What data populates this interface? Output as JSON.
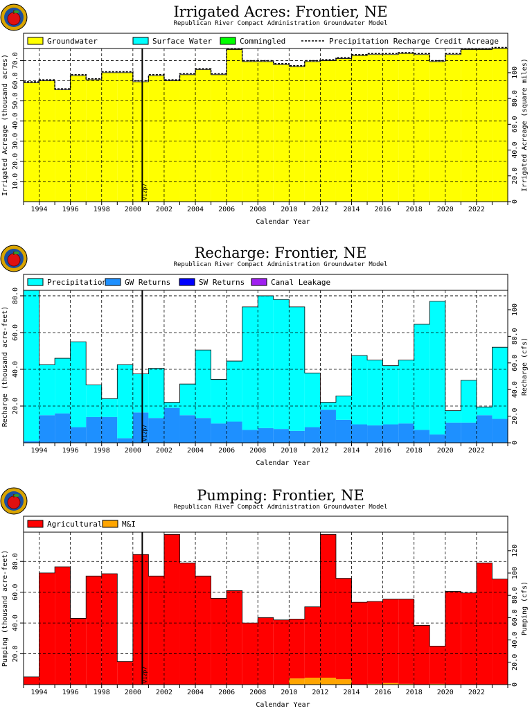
{
  "chart_data": [
    {
      "type": "area",
      "title": "Irrigated Acres: Frontier, NE",
      "subtitle": "Republican River Compact Administration Groundwater Model",
      "xlabel": "Calendar Year",
      "ylabel": "Irrigated Acreage (thousand acres)",
      "ylabel_right": "Irrigated Acreage (square miles)",
      "xlim": [
        1993,
        2024
      ],
      "ylim": [
        0,
        76
      ],
      "y_ticks": [
        {
          "v": 10,
          "label": "10.0"
        },
        {
          "v": 20,
          "label": "20.0"
        },
        {
          "v": 30,
          "label": "30.0"
        },
        {
          "v": 40,
          "label": "40.0"
        },
        {
          "v": 50,
          "label": "50.0"
        },
        {
          "v": 60,
          "label": "60.0"
        },
        {
          "v": 70,
          "label": "70.0"
        }
      ],
      "y2_ticks": [
        {
          "v": 0,
          "label": "0"
        },
        {
          "v": 20,
          "label": "20.0"
        },
        {
          "v": 40,
          "label": "40.0"
        },
        {
          "v": 60,
          "label": "60.0"
        },
        {
          "v": 80,
          "label": "80.0"
        },
        {
          "v": 100,
          "label": "100"
        }
      ],
      "y2_scale": 0.64,
      "x_ticks": [
        {
          "v": 1994,
          "label": "1994"
        },
        {
          "v": 1996,
          "label": "1996"
        },
        {
          "v": 1998,
          "label": "1998"
        },
        {
          "v": 2000,
          "label": "2000"
        },
        {
          "v": 2002,
          "label": "2002"
        },
        {
          "v": 2004,
          "label": "2004"
        },
        {
          "v": 2006,
          "label": "2006"
        },
        {
          "v": 2008,
          "label": "2008"
        },
        {
          "v": 2010,
          "label": "2010"
        },
        {
          "v": 2012,
          "label": "2012"
        },
        {
          "v": 2014,
          "label": "2014"
        },
        {
          "v": 2016,
          "label": "2016"
        },
        {
          "v": 2018,
          "label": "2018"
        },
        {
          "v": 2020,
          "label": "2020"
        },
        {
          "v": 2022,
          "label": "2022"
        }
      ],
      "marker": {
        "x": 2000.6,
        "label": "V12p7"
      },
      "grid": true,
      "legend": [
        {
          "name": "Groundwater",
          "color": "#ffff00",
          "kind": "box"
        },
        {
          "name": "Surface Water",
          "color": "#00ffff",
          "kind": "box"
        },
        {
          "name": "Commingled",
          "color": "#00ff00",
          "kind": "box"
        },
        {
          "name": "Precipitation Recharge Credit Acreage",
          "color": "#000000",
          "kind": "dash"
        }
      ],
      "x": [
        1993,
        1994,
        1995,
        1996,
        1997,
        1998,
        1999,
        2000,
        2001,
        2002,
        2003,
        2004,
        2005,
        2006,
        2007,
        2008,
        2009,
        2010,
        2011,
        2012,
        2013,
        2014,
        2015,
        2016,
        2017,
        2018,
        2019,
        2020,
        2021,
        2022,
        2023
      ],
      "series": [
        {
          "name": "Groundwater",
          "color": "#ffff00",
          "values": [
            59.0,
            60.0,
            55.5,
            62.5,
            60.5,
            64.0,
            64.0,
            59.5,
            62.5,
            60.0,
            63.0,
            65.5,
            63.0,
            75.5,
            69.5,
            69.5,
            68.0,
            67.0,
            69.5,
            70.0,
            71.0,
            72.5,
            73.0,
            73.0,
            73.5,
            73.0,
            69.5,
            73.0,
            75.5,
            75.5,
            76.0
          ]
        }
      ],
      "line": {
        "name": "Precipitation Recharge Credit Acreage",
        "values": [
          59.5,
          60.5,
          56.0,
          63.0,
          61.0,
          64.5,
          64.5,
          60.0,
          63.0,
          60.5,
          63.5,
          66.0,
          63.5,
          76.0,
          70.0,
          70.0,
          68.5,
          67.5,
          70.0,
          70.5,
          71.5,
          73.0,
          73.5,
          73.5,
          74.0,
          73.5,
          70.0,
          73.5,
          76.0,
          76.0,
          76.5
        ]
      }
    },
    {
      "type": "area",
      "title": "Recharge: Frontier, NE",
      "subtitle": "Republican River Compact Administration Groundwater Model",
      "xlabel": "Calendar Year",
      "ylabel": "Recharge (thousand acre-feet)",
      "ylabel_right": "Recharge (cfs)",
      "xlim": [
        1993,
        2024
      ],
      "ylim": [
        0,
        83
      ],
      "y_ticks": [
        {
          "v": 20,
          "label": "20.0"
        },
        {
          "v": 40,
          "label": "40.0"
        },
        {
          "v": 60,
          "label": "60.0"
        },
        {
          "v": 80,
          "label": "80.0"
        }
      ],
      "y2_ticks": [
        {
          "v": 0,
          "label": "0"
        },
        {
          "v": 20,
          "label": "20.0"
        },
        {
          "v": 40,
          "label": "40.0"
        },
        {
          "v": 60,
          "label": "60.0"
        },
        {
          "v": 80,
          "label": "80.0"
        },
        {
          "v": 100,
          "label": "100"
        }
      ],
      "y2_scale": 0.7245,
      "x_ticks": [
        {
          "v": 1994,
          "label": "1994"
        },
        {
          "v": 1996,
          "label": "1996"
        },
        {
          "v": 1998,
          "label": "1998"
        },
        {
          "v": 2000,
          "label": "2000"
        },
        {
          "v": 2002,
          "label": "2002"
        },
        {
          "v": 2004,
          "label": "2004"
        },
        {
          "v": 2006,
          "label": "2006"
        },
        {
          "v": 2008,
          "label": "2008"
        },
        {
          "v": 2010,
          "label": "2010"
        },
        {
          "v": 2012,
          "label": "2012"
        },
        {
          "v": 2014,
          "label": "2014"
        },
        {
          "v": 2016,
          "label": "2016"
        },
        {
          "v": 2018,
          "label": "2018"
        },
        {
          "v": 2020,
          "label": "2020"
        },
        {
          "v": 2022,
          "label": "2022"
        }
      ],
      "marker": {
        "x": 2000.6,
        "label": "V12p7"
      },
      "grid": true,
      "legend": [
        {
          "name": "Precipitation",
          "color": "#00ffff",
          "kind": "box"
        },
        {
          "name": "GW Returns",
          "color": "#1e90ff",
          "kind": "box"
        },
        {
          "name": "SW Returns",
          "color": "#0000ff",
          "kind": "box"
        },
        {
          "name": "Canal Leakage",
          "color": "#a020f0",
          "kind": "box"
        }
      ],
      "x": [
        1993,
        1994,
        1995,
        1996,
        1997,
        1998,
        1999,
        2000,
        2001,
        2002,
        2003,
        2004,
        2005,
        2006,
        2007,
        2008,
        2009,
        2010,
        2011,
        2012,
        2013,
        2014,
        2015,
        2016,
        2017,
        2018,
        2019,
        2020,
        2021,
        2022,
        2023
      ],
      "series": [
        {
          "name": "GW Returns",
          "color": "#1e90ff",
          "values": [
            1.0,
            15.0,
            16.0,
            8.5,
            14.0,
            14.0,
            2.5,
            16.5,
            13.5,
            19.0,
            15.0,
            13.5,
            10.5,
            11.5,
            7.0,
            8.0,
            7.5,
            6.5,
            8.5,
            18.0,
            12.5,
            10.0,
            9.5,
            10.0,
            10.5,
            7.0,
            4.5,
            11.0,
            11.0,
            15.0,
            13.0
          ]
        },
        {
          "name": "Precipitation",
          "color": "#00ffff",
          "values": [
            82.0,
            27.5,
            30.0,
            46.5,
            17.5,
            10.0,
            40.0,
            21.0,
            27.0,
            3.0,
            17.0,
            37.0,
            24.0,
            33.0,
            67.0,
            72.0,
            70.5,
            67.5,
            29.5,
            4.0,
            13.0,
            37.5,
            35.5,
            32.0,
            34.5,
            57.5,
            72.5,
            6.5,
            23.0,
            4.5,
            39.0
          ]
        },
        {
          "name": "SW Returns",
          "color": "#0000ff",
          "values": [
            0,
            0,
            0,
            0,
            0,
            0,
            0,
            0,
            0,
            0,
            0,
            0,
            0,
            0,
            0,
            0,
            0,
            0,
            0,
            0,
            0,
            0,
            0,
            0,
            0,
            0,
            0,
            0,
            0,
            0,
            0
          ]
        },
        {
          "name": "Canal Leakage",
          "color": "#a020f0",
          "values": [
            0,
            0,
            0,
            0,
            0,
            0,
            0,
            0,
            0,
            0,
            0,
            0,
            0,
            0,
            0,
            0,
            0,
            0,
            0,
            0,
            0,
            0,
            0,
            0,
            0,
            0,
            0,
            0,
            0,
            0,
            0
          ]
        }
      ]
    },
    {
      "type": "area",
      "title": "Pumping: Frontier, NE",
      "subtitle": "Republican River Compact Administration Groundwater Model",
      "xlabel": "Calendar Year",
      "ylabel": "Pumping (thousand acre-feet)",
      "ylabel_right": "Pumping (cfs)",
      "xlim": [
        1993,
        2024
      ],
      "ylim": [
        0,
        99
      ],
      "y_ticks": [
        {
          "v": 20,
          "label": "20.0"
        },
        {
          "v": 40,
          "label": "40.0"
        },
        {
          "v": 60,
          "label": "60.0"
        },
        {
          "v": 80,
          "label": "80.0"
        }
      ],
      "y2_ticks": [
        {
          "v": 0,
          "label": "0"
        },
        {
          "v": 20,
          "label": "20.0"
        },
        {
          "v": 40,
          "label": "40.0"
        },
        {
          "v": 60,
          "label": "60.0"
        },
        {
          "v": 80,
          "label": "80.0"
        },
        {
          "v": 100,
          "label": "100"
        },
        {
          "v": 120,
          "label": "120"
        }
      ],
      "y2_scale": 0.7245,
      "x_ticks": [
        {
          "v": 1994,
          "label": "1994"
        },
        {
          "v": 1996,
          "label": "1996"
        },
        {
          "v": 1998,
          "label": "1998"
        },
        {
          "v": 2000,
          "label": "2000"
        },
        {
          "v": 2002,
          "label": "2002"
        },
        {
          "v": 2004,
          "label": "2004"
        },
        {
          "v": 2006,
          "label": "2006"
        },
        {
          "v": 2008,
          "label": "2008"
        },
        {
          "v": 2010,
          "label": "2010"
        },
        {
          "v": 2012,
          "label": "2012"
        },
        {
          "v": 2014,
          "label": "2014"
        },
        {
          "v": 2016,
          "label": "2016"
        },
        {
          "v": 2018,
          "label": "2018"
        },
        {
          "v": 2020,
          "label": "2020"
        },
        {
          "v": 2022,
          "label": "2022"
        }
      ],
      "marker": {
        "x": 2000.6,
        "label": "V12p7"
      },
      "grid": true,
      "legend": [
        {
          "name": "Agricultural",
          "color": "#ff0000",
          "kind": "box"
        },
        {
          "name": "M&I",
          "color": "#ffa500",
          "kind": "box"
        }
      ],
      "x": [
        1993,
        1994,
        1995,
        1996,
        1997,
        1998,
        1999,
        2000,
        2001,
        2002,
        2003,
        2004,
        2005,
        2006,
        2007,
        2008,
        2009,
        2010,
        2011,
        2012,
        2013,
        2014,
        2015,
        2016,
        2017,
        2018,
        2019,
        2020,
        2021,
        2022,
        2023
      ],
      "series": [
        {
          "name": "M&I",
          "color": "#ffa500",
          "values": [
            0,
            0,
            0,
            0,
            0,
            0,
            0,
            0,
            0,
            0,
            0,
            0,
            0,
            0,
            0,
            0,
            0,
            4.0,
            4.5,
            4.5,
            3.5,
            0,
            0.5,
            1.0,
            0.5,
            0,
            0.5,
            0,
            0,
            0,
            0
          ]
        },
        {
          "name": "Agricultural",
          "color": "#ff0000",
          "values": [
            5.0,
            72.5,
            76.5,
            43.0,
            70.5,
            72.0,
            15.0,
            84.5,
            70.5,
            97.5,
            79.0,
            70.5,
            56.0,
            61.0,
            40.0,
            43.5,
            42.0,
            38.5,
            46.0,
            93.0,
            65.5,
            53.5,
            53.5,
            54.5,
            55.0,
            38.5,
            24.5,
            60.5,
            59.5,
            79.0,
            68.5
          ]
        }
      ]
    }
  ]
}
